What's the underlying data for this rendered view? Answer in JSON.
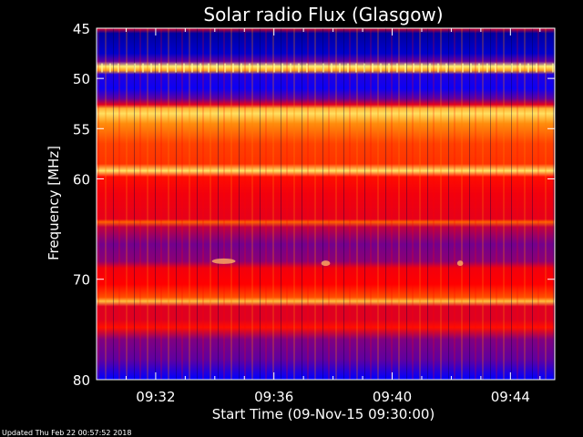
{
  "chart_data": {
    "type": "heatmap",
    "title": "Solar radio Flux (Glasgow)",
    "xlabel": "Start Time (09-Nov-15 09:30:00)",
    "ylabel": "Frequency [MHz]",
    "x_range_minutes": [
      0,
      15.5
    ],
    "y_range_mhz": [
      45,
      80
    ],
    "y_axis_inverted": true,
    "x_ticks": [
      {
        "minute": 2,
        "label": "09:32"
      },
      {
        "minute": 6,
        "label": "09:36"
      },
      {
        "minute": 10,
        "label": "09:40"
      },
      {
        "minute": 14,
        "label": "09:44"
      }
    ],
    "y_ticks": [
      {
        "mhz": 45,
        "label": "45"
      },
      {
        "mhz": 50,
        "label": "50"
      },
      {
        "mhz": 55,
        "label": "55"
      },
      {
        "mhz": 60,
        "label": "60"
      },
      {
        "mhz": 70,
        "label": "70"
      },
      {
        "mhz": 80,
        "label": "80"
      }
    ],
    "colormap": [
      "#000080",
      "#0000ff",
      "#800080",
      "#ff0000",
      "#ff8000",
      "#ffff80"
    ],
    "intensity_profile_by_mhz": [
      {
        "mhz": 45.0,
        "level": 0.55
      },
      {
        "mhz": 45.5,
        "level": 0.05
      },
      {
        "mhz": 47.5,
        "level": 0.12
      },
      {
        "mhz": 48.3,
        "level": 0.35
      },
      {
        "mhz": 48.8,
        "level": 0.98
      },
      {
        "mhz": 49.2,
        "level": 0.85
      },
      {
        "mhz": 49.6,
        "level": 0.25
      },
      {
        "mhz": 51.0,
        "level": 0.22
      },
      {
        "mhz": 52.0,
        "level": 0.35
      },
      {
        "mhz": 52.6,
        "level": 0.55
      },
      {
        "mhz": 53.0,
        "level": 0.88
      },
      {
        "mhz": 53.5,
        "level": 0.95
      },
      {
        "mhz": 54.5,
        "level": 0.82
      },
      {
        "mhz": 56.5,
        "level": 0.7
      },
      {
        "mhz": 58.5,
        "level": 0.68
      },
      {
        "mhz": 59.2,
        "level": 0.96
      },
      {
        "mhz": 59.8,
        "level": 0.62
      },
      {
        "mhz": 61.5,
        "level": 0.58
      },
      {
        "mhz": 64.0,
        "level": 0.56
      },
      {
        "mhz": 64.3,
        "level": 0.75
      },
      {
        "mhz": 64.8,
        "level": 0.5
      },
      {
        "mhz": 66.5,
        "level": 0.38
      },
      {
        "mhz": 68.2,
        "level": 0.42
      },
      {
        "mhz": 68.9,
        "level": 0.58
      },
      {
        "mhz": 70.5,
        "level": 0.6
      },
      {
        "mhz": 71.8,
        "level": 0.72
      },
      {
        "mhz": 72.2,
        "level": 0.9
      },
      {
        "mhz": 72.7,
        "level": 0.55
      },
      {
        "mhz": 74.0,
        "level": 0.55
      },
      {
        "mhz": 74.8,
        "level": 0.62
      },
      {
        "mhz": 76.0,
        "level": 0.4
      },
      {
        "mhz": 78.0,
        "level": 0.35
      },
      {
        "mhz": 79.3,
        "level": 0.25
      },
      {
        "mhz": 80.0,
        "level": 0.2
      }
    ],
    "bursts": [
      {
        "minute": 3.9,
        "mhz": 68.2,
        "duration_min": 0.8
      },
      {
        "minute": 7.6,
        "mhz": 68.4,
        "duration_min": 0.3
      },
      {
        "minute": 12.2,
        "mhz": 68.4,
        "duration_min": 0.2
      }
    ]
  },
  "footer": {
    "updated": "Updated Thu Feb 22 00:57:52 2018"
  }
}
